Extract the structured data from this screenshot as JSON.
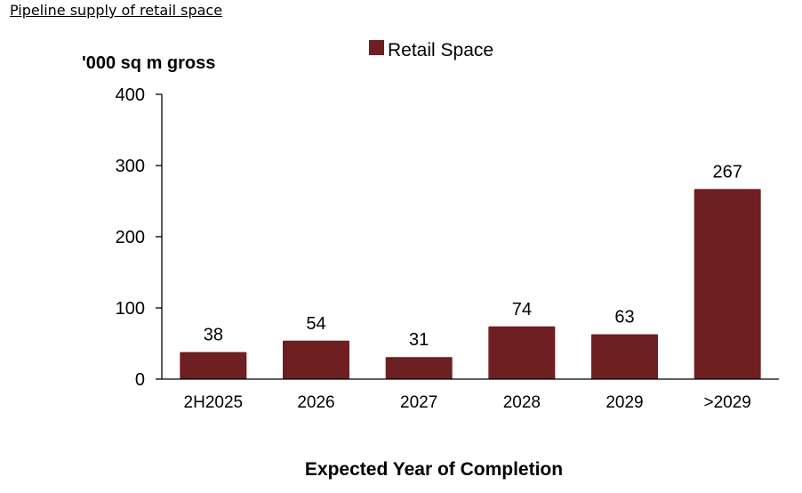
{
  "page_title": "Pipeline supply of retail space",
  "chart_data": {
    "type": "bar",
    "categories": [
      "2H2025",
      "2026",
      "2027",
      "2028",
      "2029",
      ">2029"
    ],
    "series": [
      {
        "name": "Retail Space",
        "values": [
          38,
          54,
          31,
          74,
          63,
          267
        ]
      }
    ],
    "data_labels": [
      "38",
      "54",
      "31",
      "74",
      "63",
      "267"
    ],
    "title": "",
    "xlabel": "Expected Year of Completion",
    "ylabel": "'000 sq m gross",
    "ylim": [
      0,
      400
    ],
    "yticks": [
      0,
      100,
      200,
      300,
      400
    ],
    "ytick_labels": [
      "0",
      "100",
      "200",
      "300",
      "400"
    ],
    "grid": false,
    "legend": {
      "entries": [
        "Retail Space"
      ],
      "position": "top-center"
    },
    "colors": {
      "bar": "#6e1f22",
      "axis": "#000000"
    }
  }
}
